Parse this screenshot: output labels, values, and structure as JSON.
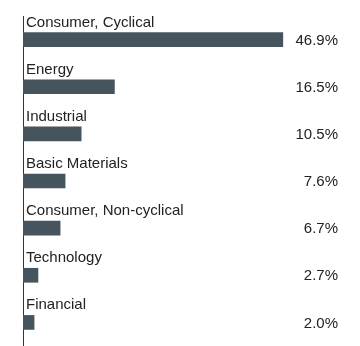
{
  "chart_data": {
    "type": "bar",
    "orientation": "horizontal",
    "categories": [
      "Consumer, Cyclical",
      "Energy",
      "Industrial",
      "Basic Materials",
      "Consumer, Non-cyclical",
      "Technology",
      "Financial"
    ],
    "values": [
      46.9,
      16.5,
      10.5,
      7.6,
      6.7,
      2.7,
      2.0
    ],
    "value_labels": [
      "46.9%",
      "16.5%",
      "10.5%",
      "7.6%",
      "6.7%",
      "2.7%",
      "2.0%"
    ],
    "color": "#46545e",
    "xlim": [
      0,
      50
    ],
    "grid": false,
    "data_labels": true,
    "tick_labels": false
  }
}
